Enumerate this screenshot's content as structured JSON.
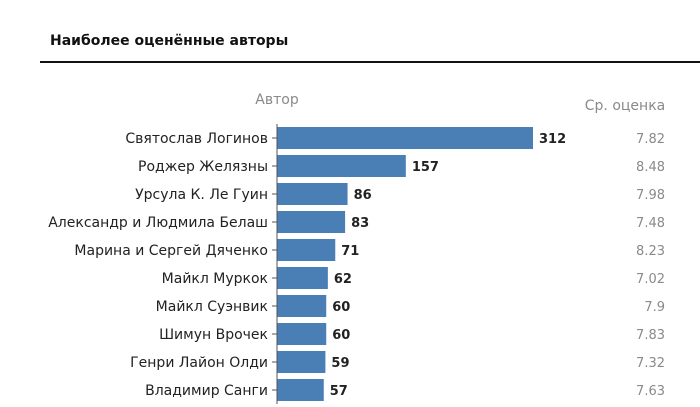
{
  "title": "Наиболее оценённые авторы",
  "chart_data": {
    "type": "bar",
    "orientation": "horizontal",
    "title": "Наиболее оценённые авторы",
    "category_header": "Автор",
    "rating_header": "Ср. оценка",
    "categories": [
      "Святослав Логинов",
      "Роджер Желязны",
      "Урсула К. Ле Гуин",
      "Александр и Людмила Белаш",
      "Марина и Сергей Дяченко",
      "Майкл Муркок",
      "Майкл Суэнвик",
      "Шимун Врочек",
      "Генри Лайон Олди",
      "Владимир Санги"
    ],
    "values": [
      312,
      157,
      86,
      83,
      71,
      62,
      60,
      60,
      59,
      57
    ],
    "ratings": [
      "7.82",
      "8.48",
      "7.98",
      "7.48",
      "8.23",
      "7.02",
      "7.9",
      "7.83",
      "7.32",
      "7.63"
    ],
    "bar_color": "#4a7fb5",
    "grid": false
  }
}
